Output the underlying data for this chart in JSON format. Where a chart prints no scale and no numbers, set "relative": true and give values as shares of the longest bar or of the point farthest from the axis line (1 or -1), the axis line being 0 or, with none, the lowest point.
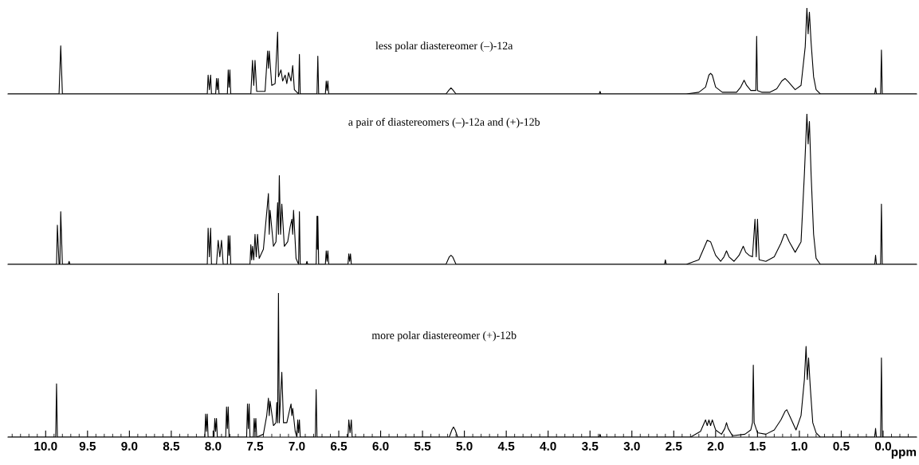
{
  "chart_data": [
    {
      "type": "line",
      "relative": true,
      "tick_labels": false,
      "xlim": [
        10.45,
        -0.4
      ],
      "annotations": [
        "less polar diastereomer (–)-12a"
      ],
      "x": [
        10.45,
        9.84,
        9.82,
        9.8,
        8.07,
        8.06,
        8.045,
        8.03,
        8.02,
        7.97,
        7.96,
        7.95,
        7.94,
        7.93,
        7.83,
        7.82,
        7.81,
        7.8,
        7.79,
        7.55,
        7.53,
        7.515,
        7.5,
        7.48,
        7.38,
        7.35,
        7.34,
        7.33,
        7.3,
        7.26,
        7.23,
        7.22,
        7.19,
        7.17,
        7.14,
        7.12,
        7.1,
        7.07,
        7.05,
        7.03,
        6.98,
        6.97,
        6.96,
        6.76,
        6.75,
        6.74,
        6.66,
        6.65,
        6.64,
        6.63,
        6.62,
        5.22,
        5.18,
        5.16,
        5.14,
        5.1,
        3.39,
        3.38,
        3.37,
        2.35,
        2.2,
        2.12,
        2.08,
        2.06,
        2.04,
        2.0,
        1.92,
        1.75,
        1.7,
        1.66,
        1.63,
        1.58,
        1.52,
        1.51,
        1.5,
        1.45,
        1.35,
        1.27,
        1.21,
        1.17,
        1.13,
        1.05,
        0.98,
        0.93,
        0.91,
        0.895,
        0.88,
        0.86,
        0.83,
        0.8,
        0.75,
        0.1,
        0.09,
        0.08,
        0.03,
        0.02,
        0.01,
        -0.4
      ],
      "series": [
        {
          "color": "#000000",
          "values": [
            0,
            0,
            0.56,
            0,
            0,
            0.22,
            0.05,
            0.22,
            0,
            0,
            0.18,
            0.05,
            0.18,
            0,
            0,
            0.28,
            0.08,
            0.28,
            0,
            0,
            0.39,
            0.1,
            0.39,
            0.03,
            0.03,
            0.5,
            0.3,
            0.5,
            0.1,
            0.12,
            0.72,
            0.2,
            0.28,
            0.15,
            0.22,
            0.12,
            0.25,
            0.15,
            0.33,
            0.05,
            0,
            0.46,
            0,
            0,
            0.44,
            0,
            0,
            0.15,
            0.04,
            0.15,
            0,
            0,
            0.05,
            0.07,
            0.05,
            0,
            0,
            0.03,
            0,
            0,
            0.02,
            0.08,
            0.22,
            0.24,
            0.22,
            0.08,
            0.02,
            0.02,
            0.08,
            0.16,
            0.1,
            0.04,
            0.04,
            0.67,
            0.04,
            0.02,
            0.02,
            0.06,
            0.15,
            0.18,
            0.14,
            0.05,
            0.1,
            0.55,
            1.0,
            0.7,
            0.95,
            0.6,
            0.2,
            0.05,
            0,
            0,
            0.07,
            0,
            0,
            0.51,
            0,
            0
          ]
        }
      ]
    },
    {
      "type": "line",
      "relative": true,
      "tick_labels": false,
      "xlim": [
        10.45,
        -0.4
      ],
      "annotations": [
        "a pair of diastereomers (–)-12a and (+)-12b"
      ],
      "x": [
        10.45,
        9.87,
        9.86,
        9.84,
        9.83,
        9.82,
        9.8,
        9.73,
        9.72,
        9.71,
        8.07,
        8.06,
        8.045,
        8.03,
        8.02,
        7.96,
        7.94,
        7.92,
        7.9,
        7.88,
        7.83,
        7.82,
        7.81,
        7.8,
        7.79,
        7.56,
        7.55,
        7.54,
        7.53,
        7.515,
        7.5,
        7.485,
        7.47,
        7.45,
        7.4,
        7.34,
        7.33,
        7.32,
        7.28,
        7.25,
        7.23,
        7.22,
        7.21,
        7.195,
        7.18,
        7.15,
        7.11,
        7.08,
        7.06,
        7.05,
        7.04,
        7.01,
        6.98,
        6.97,
        6.96,
        6.89,
        6.88,
        6.87,
        6.77,
        6.76,
        6.755,
        6.75,
        6.74,
        6.66,
        6.65,
        6.64,
        6.63,
        6.62,
        6.39,
        6.38,
        6.37,
        6.36,
        6.35,
        5.22,
        5.18,
        5.16,
        5.14,
        5.1,
        2.61,
        2.6,
        2.59,
        2.35,
        2.2,
        2.13,
        2.1,
        2.06,
        2.0,
        1.94,
        1.9,
        1.87,
        1.84,
        1.78,
        1.72,
        1.67,
        1.64,
        1.6,
        1.56,
        1.53,
        1.515,
        1.5,
        1.48,
        1.4,
        1.3,
        1.22,
        1.18,
        1.16,
        1.12,
        1.05,
        0.98,
        0.94,
        0.91,
        0.895,
        0.88,
        0.86,
        0.83,
        0.8,
        0.75,
        0.1,
        0.09,
        0.08,
        0.03,
        0.02,
        0.01,
        -0.4
      ],
      "series": [
        {
          "color": "#000000",
          "values": [
            0,
            0,
            0.26,
            0,
            0,
            0.35,
            0,
            0,
            0.02,
            0,
            0,
            0.24,
            0.05,
            0.24,
            0,
            0,
            0.16,
            0.05,
            0.16,
            0,
            0,
            0.19,
            0.06,
            0.19,
            0,
            0,
            0.13,
            0.03,
            0.12,
            0.03,
            0.2,
            0.05,
            0.2,
            0.04,
            0.1,
            0.47,
            0.2,
            0.36,
            0.12,
            0.15,
            0.41,
            0.2,
            0.59,
            0.2,
            0.4,
            0.12,
            0.15,
            0.25,
            0.3,
            0.2,
            0.36,
            0.04,
            0,
            0.35,
            0,
            0,
            0.02,
            0,
            0,
            0.32,
            0.1,
            0.32,
            0,
            0,
            0.09,
            0.02,
            0.09,
            0,
            0,
            0.07,
            0.02,
            0.07,
            0,
            0,
            0.05,
            0.06,
            0.05,
            0,
            0,
            0.03,
            0,
            0,
            0.03,
            0.12,
            0.16,
            0.15,
            0.06,
            0.02,
            0.05,
            0.09,
            0.05,
            0.02,
            0.06,
            0.12,
            0.08,
            0.06,
            0.05,
            0.3,
            0.05,
            0.3,
            0.03,
            0.02,
            0.05,
            0.14,
            0.2,
            0.2,
            0.15,
            0.08,
            0.15,
            0.6,
            1.0,
            0.8,
            0.95,
            0.6,
            0.2,
            0.04,
            0,
            0,
            0.06,
            0,
            0,
            0.4,
            0,
            0
          ]
        }
      ]
    },
    {
      "type": "line",
      "relative": true,
      "tick_labels": "x",
      "xlim": [
        10.45,
        -0.4
      ],
      "xlabel": "ppm",
      "xticks": [
        {
          "value": 10,
          "label": "10.0"
        },
        9.5,
        {
          "value": 9,
          "label": "9.0"
        },
        8.5,
        {
          "value": 8,
          "label": "8.0"
        },
        7.5,
        {
          "value": 7,
          "label": "7.0"
        },
        6.5,
        {
          "value": 6,
          "label": "6.0"
        },
        5.5,
        {
          "value": 5,
          "label": "5.0"
        },
        4.5,
        {
          "value": 4,
          "label": "4.0"
        },
        3.5,
        {
          "value": 3,
          "label": "3.0"
        },
        2.5,
        {
          "value": 2,
          "label": "2.0"
        },
        1.5,
        {
          "value": 1,
          "label": "1.0"
        },
        0.5,
        {
          "value": 0,
          "label": "0.0"
        },
        {
          "value": 10.4,
          "label": null
        },
        {
          "value": 10.3,
          "label": null
        },
        {
          "value": 10.2,
          "label": null
        },
        {
          "value": 10.1,
          "label": null
        },
        {
          "value": 9.9,
          "label": null
        },
        {
          "value": 9.8,
          "label": null
        },
        {
          "value": 9.7,
          "label": null
        },
        {
          "value": 9.6,
          "label": null
        },
        {
          "value": 9.4,
          "label": null
        },
        {
          "value": 9.3,
          "label": null
        },
        {
          "value": 9.2,
          "label": null
        },
        {
          "value": 9.1,
          "label": null
        },
        {
          "value": 8.9,
          "label": null
        },
        {
          "value": 8.8,
          "label": null
        },
        {
          "value": 8.7,
          "label": null
        },
        {
          "value": 8.6,
          "label": null
        },
        {
          "value": 8.4,
          "label": null
        },
        {
          "value": 8.3,
          "label": null
        },
        {
          "value": 8.2,
          "label": null
        },
        {
          "value": 8.1,
          "label": null
        },
        {
          "value": 7.9,
          "label": null
        },
        {
          "value": 7.8,
          "label": null
        },
        {
          "value": 7.7,
          "label": null
        },
        {
          "value": 7.6,
          "label": null
        },
        {
          "value": 7.4,
          "label": null
        },
        {
          "value": 7.3,
          "label": null
        },
        {
          "value": 7.2,
          "label": null
        },
        {
          "value": 7.1,
          "label": null
        },
        {
          "value": 6.9,
          "label": null
        },
        {
          "value": 6.8,
          "label": null
        },
        {
          "value": 6.7,
          "label": null
        },
        {
          "value": 6.6,
          "label": null
        },
        {
          "value": 6.4,
          "label": null
        },
        {
          "value": 6.3,
          "label": null
        },
        {
          "value": 6.2,
          "label": null
        },
        {
          "value": 6.1,
          "label": null
        },
        {
          "value": 5.9,
          "label": null
        },
        {
          "value": 5.8,
          "label": null
        },
        {
          "value": 5.7,
          "label": null
        },
        {
          "value": 5.6,
          "label": null
        },
        {
          "value": 5.4,
          "label": null
        },
        {
          "value": 5.3,
          "label": null
        },
        {
          "value": 5.2,
          "label": null
        },
        {
          "value": 5.1,
          "label": null
        },
        {
          "value": 4.9,
          "label": null
        },
        {
          "value": 4.8,
          "label": null
        },
        {
          "value": 4.7,
          "label": null
        },
        {
          "value": 4.6,
          "label": null
        },
        {
          "value": 4.4,
          "label": null
        },
        {
          "value": 4.3,
          "label": null
        },
        {
          "value": 4.2,
          "label": null
        },
        {
          "value": 4.1,
          "label": null
        },
        {
          "value": 3.9,
          "label": null
        },
        {
          "value": 3.8,
          "label": null
        },
        {
          "value": 3.7,
          "label": null
        },
        {
          "value": 3.6,
          "label": null
        },
        {
          "value": 3.4,
          "label": null
        },
        {
          "value": 3.3,
          "label": null
        },
        {
          "value": 3.2,
          "label": null
        },
        {
          "value": 3.1,
          "label": null
        },
        {
          "value": 2.9,
          "label": null
        },
        {
          "value": 2.8,
          "label": null
        },
        {
          "value": 2.7,
          "label": null
        },
        {
          "value": 2.6,
          "label": null
        },
        {
          "value": 2.4,
          "label": null
        },
        {
          "value": 2.3,
          "label": null
        },
        {
          "value": 2.2,
          "label": null
        },
        {
          "value": 2.1,
          "label": null
        },
        {
          "value": 1.9,
          "label": null
        },
        {
          "value": 1.8,
          "label": null
        },
        {
          "value": 1.7,
          "label": null
        },
        {
          "value": 1.6,
          "label": null
        },
        {
          "value": 1.4,
          "label": null
        },
        {
          "value": 1.3,
          "label": null
        },
        {
          "value": 1.2,
          "label": null
        },
        {
          "value": 1.1,
          "label": null
        },
        {
          "value": 0.9,
          "label": null
        },
        {
          "value": 0.8,
          "label": null
        },
        {
          "value": 0.7,
          "label": null
        },
        {
          "value": 0.6,
          "label": null
        },
        {
          "value": 0.4,
          "label": null
        },
        {
          "value": 0.3,
          "label": null
        },
        {
          "value": 0.2,
          "label": null
        },
        {
          "value": 0.1,
          "label": null
        },
        {
          "value": -0.1,
          "label": null
        },
        {
          "value": -0.2,
          "label": null
        },
        {
          "value": -0.3,
          "label": null
        }
      ],
      "annotations": [
        "more polar diastereomer (+)-12b"
      ],
      "x": [
        10.45,
        9.88,
        9.87,
        9.86,
        8.1,
        8.09,
        8.08,
        8.07,
        8.06,
        7.99,
        7.98,
        7.97,
        7.96,
        7.95,
        7.85,
        7.84,
        7.83,
        7.82,
        7.81,
        7.6,
        7.59,
        7.58,
        7.57,
        7.56,
        7.52,
        7.51,
        7.5,
        7.49,
        7.48,
        7.4,
        7.36,
        7.34,
        7.33,
        7.32,
        7.28,
        7.25,
        7.24,
        7.23,
        7.22,
        7.21,
        7.18,
        7.16,
        7.12,
        7.09,
        7.07,
        7.06,
        7.05,
        7.02,
        7.0,
        6.99,
        6.98,
        6.97,
        6.96,
        6.78,
        6.77,
        6.76,
        6.39,
        6.38,
        6.365,
        6.35,
        6.34,
        5.18,
        5.15,
        5.13,
        5.11,
        5.08,
        3.39,
        3.38,
        3.37,
        2.3,
        2.18,
        2.12,
        2.1,
        2.08,
        2.06,
        2.04,
        2.0,
        1.93,
        1.89,
        1.87,
        1.85,
        1.8,
        1.65,
        1.58,
        1.56,
        1.55,
        1.54,
        1.5,
        1.4,
        1.3,
        1.22,
        1.17,
        1.15,
        1.11,
        1.04,
        0.98,
        0.94,
        0.92,
        0.905,
        0.89,
        0.87,
        0.84,
        0.8,
        0.75,
        0.1,
        0.09,
        0.08,
        0.03,
        0.02,
        0.01,
        -0.4
      ],
      "series": [
        {
          "color": "#000000",
          "values": [
            0,
            0,
            0.37,
            0,
            0,
            0.16,
            0.04,
            0.16,
            0,
            0,
            0.13,
            0.04,
            0.13,
            0,
            0,
            0.21,
            0.06,
            0.21,
            0,
            0,
            0.23,
            0.06,
            0.23,
            0,
            0,
            0.13,
            0.04,
            0.13,
            0,
            0.02,
            0.15,
            0.27,
            0.15,
            0.25,
            0.08,
            0.1,
            0.24,
            0.1,
            1.0,
            0.1,
            0.45,
            0.1,
            0.1,
            0.18,
            0.23,
            0.15,
            0.2,
            0.04,
            0,
            0.12,
            0.03,
            0.12,
            0,
            0,
            0.33,
            0,
            0,
            0.12,
            0.03,
            0.12,
            0,
            0,
            0.05,
            0.07,
            0.05,
            0,
            0,
            0.02,
            0,
            0,
            0.04,
            0.12,
            0.08,
            0.12,
            0.08,
            0.12,
            0.05,
            0.02,
            0.06,
            0.1,
            0.06,
            0.01,
            0.02,
            0.05,
            0.1,
            0.5,
            0.1,
            0.03,
            0.02,
            0.05,
            0.12,
            0.18,
            0.19,
            0.14,
            0.05,
            0.15,
            0.4,
            0.63,
            0.4,
            0.55,
            0.35,
            0.1,
            0.03,
            0,
            0,
            0.06,
            0,
            0,
            0.55,
            0,
            0
          ]
        }
      ]
    }
  ]
}
